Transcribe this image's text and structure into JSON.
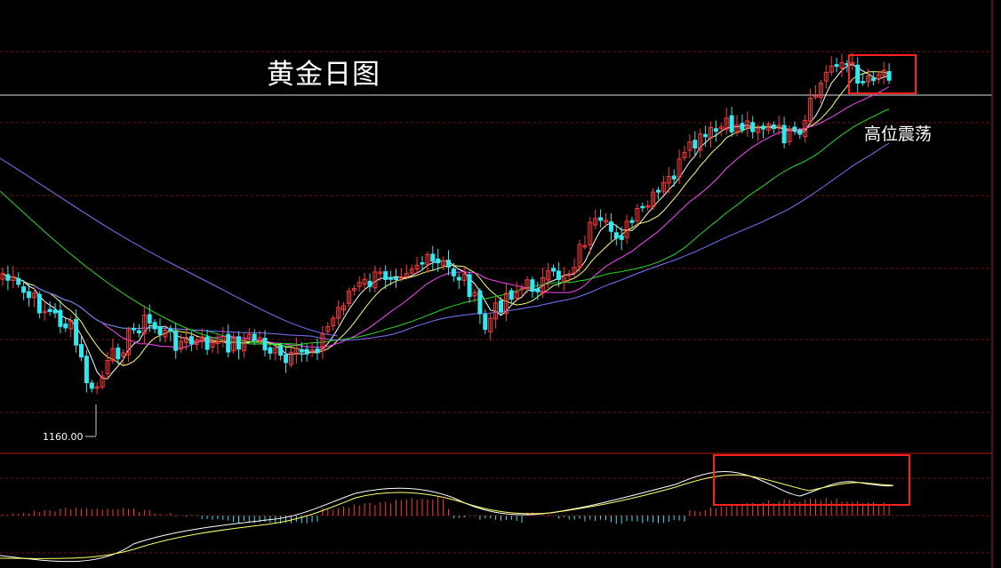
{
  "title": "黄金日图",
  "annotation": "高位震荡",
  "low_label": "1160.00",
  "colors": {
    "background": "#000000",
    "up_candle": "#ff3a3a",
    "down_candle": "#30e8f0",
    "ma5": "#ffffff",
    "ma10": "#ffff66",
    "ma20": "#ff44ff",
    "ma40": "#22dd22",
    "ma60": "#7777ff",
    "grid": "#7a1010",
    "panel_border": "#b01818",
    "highlight_box": "#ff2020",
    "macd_dif": "#ffffff",
    "macd_dea": "#ffff66"
  },
  "chart_data": {
    "type": "candlestick",
    "panels": [
      "price",
      "macd"
    ],
    "price_panel": {
      "marked_low": 1160.0,
      "horizontal_reference_line": true,
      "highlight_recent_range": true,
      "moving_averages": 5
    },
    "macd_panel": {
      "histogram": true,
      "lines": [
        "dif",
        "dea"
      ],
      "highlight_recent_range": true
    }
  }
}
